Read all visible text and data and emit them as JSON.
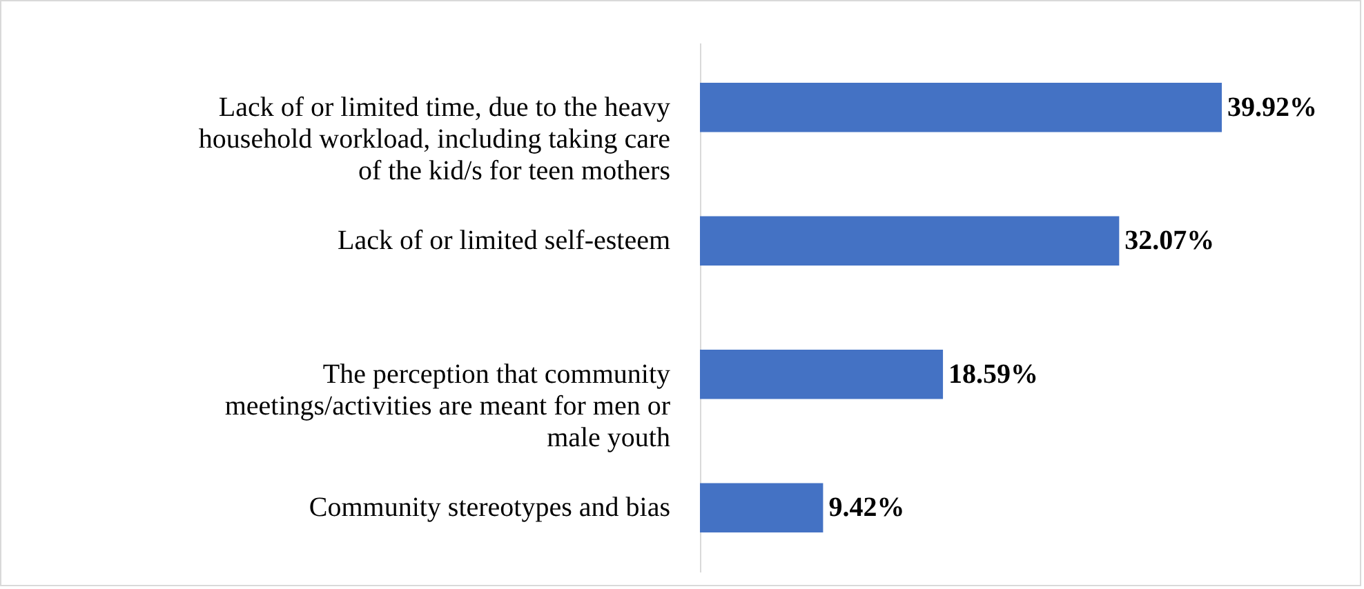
{
  "chart_data": {
    "type": "bar",
    "orientation": "horizontal",
    "categories": [
      "Lack of or limited time, due to the heavy household workload, including taking care of the kid/s for teen mothers",
      "Lack of or limited self-esteem",
      "The perception that community meetings/activities are meant for men or male youth",
      "Community stereotypes and bias"
    ],
    "values": [
      39.92,
      32.07,
      18.59,
      9.42
    ],
    "value_labels": [
      "39.92%",
      "32.07%",
      "18.59%",
      "9.42%"
    ],
    "color": "#4472c4"
  }
}
